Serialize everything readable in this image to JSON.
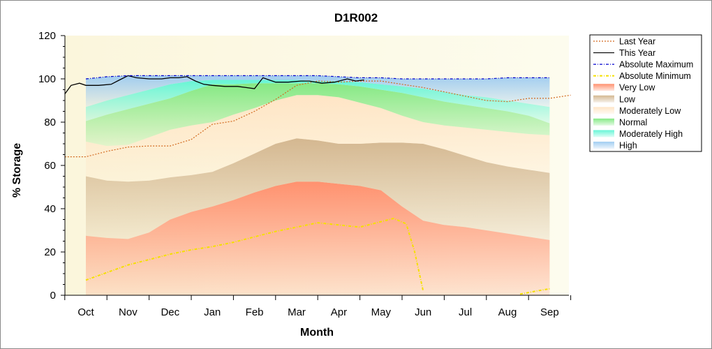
{
  "chart_data": {
    "type": "area",
    "title": "D1R002",
    "xlabel": "Month",
    "ylabel": "% Storage",
    "ylim": [
      0,
      120
    ],
    "yticks": [
      0,
      20,
      40,
      60,
      80,
      100,
      120
    ],
    "months": [
      "Oct",
      "Nov",
      "Dec",
      "Jan",
      "Feb",
      "Mar",
      "Apr",
      "May",
      "Jun",
      "Jul",
      "Aug",
      "Sep"
    ],
    "x": [
      0,
      0.5,
      1,
      1.5,
      2,
      2.5,
      3,
      3.5,
      4,
      4.5,
      5,
      5.5,
      6,
      6.5,
      7,
      7.5,
      8,
      8.5,
      9,
      9.5,
      10,
      10.5,
      11
    ],
    "bands": [
      {
        "name": "Very Low",
        "color": "#ff8c69",
        "upper": [
          27.5,
          26.5,
          26,
          29,
          35,
          38.5,
          41,
          44,
          47.5,
          50.5,
          52.5,
          52.5,
          51.5,
          50.5,
          48.5,
          41,
          34.5,
          32.5,
          31.5,
          30,
          28.5,
          27,
          25.5
        ]
      },
      {
        "name": "Low",
        "color": "#d2b48c",
        "upper": [
          55,
          53,
          52.5,
          53,
          54.5,
          55.5,
          57,
          61,
          65.5,
          70,
          72.5,
          71.5,
          70,
          70,
          70.5,
          70.5,
          70,
          67.5,
          64.5,
          61.5,
          59.5,
          58,
          56.5
        ]
      },
      {
        "name": "Moderately Low",
        "color": "#ffe4c4",
        "upper": [
          71,
          69,
          69.5,
          73,
          76.5,
          78.5,
          80,
          83.5,
          86.5,
          90,
          92.5,
          92.5,
          91.5,
          89,
          86.5,
          83,
          80,
          78.5,
          77.5,
          76.5,
          75.5,
          74.5,
          74
        ]
      },
      {
        "name": "Normal",
        "color": "#7fe87f",
        "upper": [
          80.5,
          83.5,
          86,
          88.5,
          91,
          94.5,
          97.5,
          97.5,
          98,
          98,
          98,
          98,
          97.5,
          96.5,
          95,
          93.5,
          91.5,
          89.5,
          88,
          86.5,
          85,
          83,
          79.5
        ]
      },
      {
        "name": "Moderately High",
        "color": "#5ff5d5",
        "upper": [
          87,
          90,
          92.5,
          95,
          97.5,
          99,
          99.5,
          99.5,
          99.5,
          99.5,
          99.5,
          99,
          99,
          98.5,
          97.5,
          96.5,
          95.5,
          94,
          92.5,
          91.5,
          90,
          88.5,
          87
        ]
      },
      {
        "name": "High",
        "color": "#9ccaf0",
        "upper": [
          100,
          101,
          101.5,
          101.5,
          101.5,
          101.5,
          101.5,
          101.5,
          101.5,
          101.5,
          101.5,
          101.5,
          101,
          100.5,
          100.5,
          100,
          100,
          100,
          100,
          100,
          100.5,
          100.5,
          100.5
        ]
      }
    ],
    "series": [
      {
        "name": "Last Year",
        "color": "#d2691e",
        "style": "dotted",
        "x": [
          -0.5,
          0,
          0.5,
          1,
          1.5,
          2,
          2.5,
          3,
          3.5,
          4,
          4.5,
          5,
          5.5,
          6,
          6.5,
          7,
          7.5,
          8,
          8.5,
          9,
          9.5,
          10,
          10.5,
          11,
          11.5
        ],
        "y": [
          64,
          64,
          66.5,
          68.5,
          69,
          69,
          72,
          79,
          80.5,
          85,
          90.5,
          97,
          99,
          98.5,
          99,
          99,
          97.5,
          96,
          94,
          92,
          90,
          89.5,
          91,
          91,
          92.5
        ]
      },
      {
        "name": "This Year",
        "color": "#000000",
        "style": "solid",
        "x": [
          -0.5,
          -0.35,
          -0.15,
          0,
          0.3,
          0.6,
          0.8,
          1.0,
          1.2,
          1.5,
          1.8,
          2.0,
          2.2,
          2.4,
          2.6,
          2.8,
          3.0,
          3.3,
          3.6,
          3.8,
          4.0,
          4.2,
          4.5,
          4.8,
          5.1,
          5.3,
          5.6,
          5.9,
          6.2,
          6.4,
          6.6
        ],
        "y": [
          93,
          97,
          98,
          97,
          97,
          97.5,
          99.5,
          101.5,
          100.5,
          100,
          100,
          100.5,
          100.5,
          101,
          99,
          97.5,
          97,
          96.5,
          96.5,
          96,
          95.5,
          100.5,
          98.5,
          98.5,
          99,
          99,
          98,
          98.5,
          100,
          99,
          99.5
        ]
      },
      {
        "name": "Absolute Maximum",
        "color": "#0000cd",
        "style": "dashdot",
        "x": [
          0,
          0.5,
          1,
          1.5,
          2,
          2.5,
          3,
          3.5,
          4,
          4.5,
          5,
          5.5,
          6,
          6.5,
          7,
          7.5,
          8,
          8.5,
          9,
          9.5,
          10,
          10.5,
          11
        ],
        "y": [
          100,
          101,
          101.5,
          101.5,
          101.5,
          101.5,
          101.5,
          101.5,
          101.5,
          101.5,
          101.5,
          101.5,
          101,
          100.5,
          100.5,
          100,
          100,
          100,
          100,
          100,
          100.5,
          100.5,
          100.5
        ]
      },
      {
        "name": "Absolute Minimum",
        "color": "#f5e000",
        "style": "dashdot",
        "x": [
          0,
          0.5,
          1,
          1.5,
          2,
          2.5,
          3,
          3.5,
          4,
          4.5,
          5,
          5.5,
          6,
          6.5,
          7,
          7.3,
          7.6,
          7.8,
          8.0
        ],
        "y": [
          7,
          10.5,
          14,
          16.5,
          19,
          21,
          22.5,
          24.5,
          27,
          29.5,
          31.5,
          33.5,
          32.5,
          31.5,
          34,
          35.5,
          33,
          20,
          2
        ]
      },
      {
        "name": "Absolute Minimum",
        "color": "#f5e000",
        "style": "dashdot",
        "legend": false,
        "x": [
          10.3,
          10.7,
          11.0
        ],
        "y": [
          0.5,
          2,
          3
        ]
      }
    ],
    "legend": [
      "Last Year",
      "This Year",
      "Absolute Maximum",
      "Absolute Minimum",
      "Very Low",
      "Low",
      "Moderately Low",
      "Normal",
      "Moderately High",
      "High"
    ],
    "legend_position": "right",
    "grid": false
  }
}
